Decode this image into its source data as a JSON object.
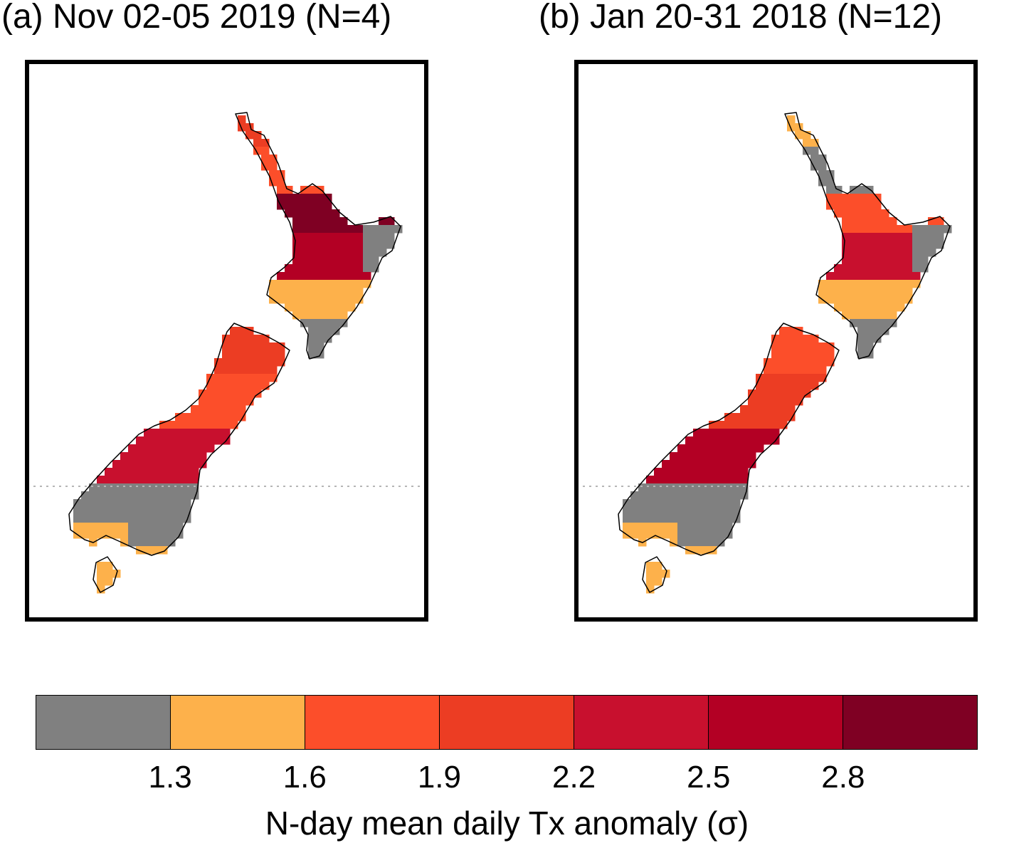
{
  "panels": [
    {
      "id": "a",
      "title": "(a) Nov 02-05 2019 (N=4)",
      "fill_classes": {
        "north_island": [
          3,
          2,
          6,
          5,
          1,
          0
        ],
        "south_island": [
          3,
          2,
          4,
          0,
          1
        ]
      }
    },
    {
      "id": "b",
      "title": "(b) Jan 20-31 2018 (N=12)",
      "fill_classes": {
        "north_island": [
          1,
          0,
          2,
          4,
          1,
          0
        ],
        "south_island": [
          2,
          3,
          5,
          0,
          1
        ]
      }
    }
  ],
  "colorbar": {
    "colors": [
      "#808080",
      "#fdb14b",
      "#fc4e2a",
      "#ec3d23",
      "#c8102e",
      "#b30024",
      "#7f0023"
    ],
    "ticks": [
      "1.3",
      "1.6",
      "1.9",
      "2.2",
      "2.5",
      "2.8"
    ],
    "label": "N-day mean daily Tx anomaly (σ)"
  }
}
